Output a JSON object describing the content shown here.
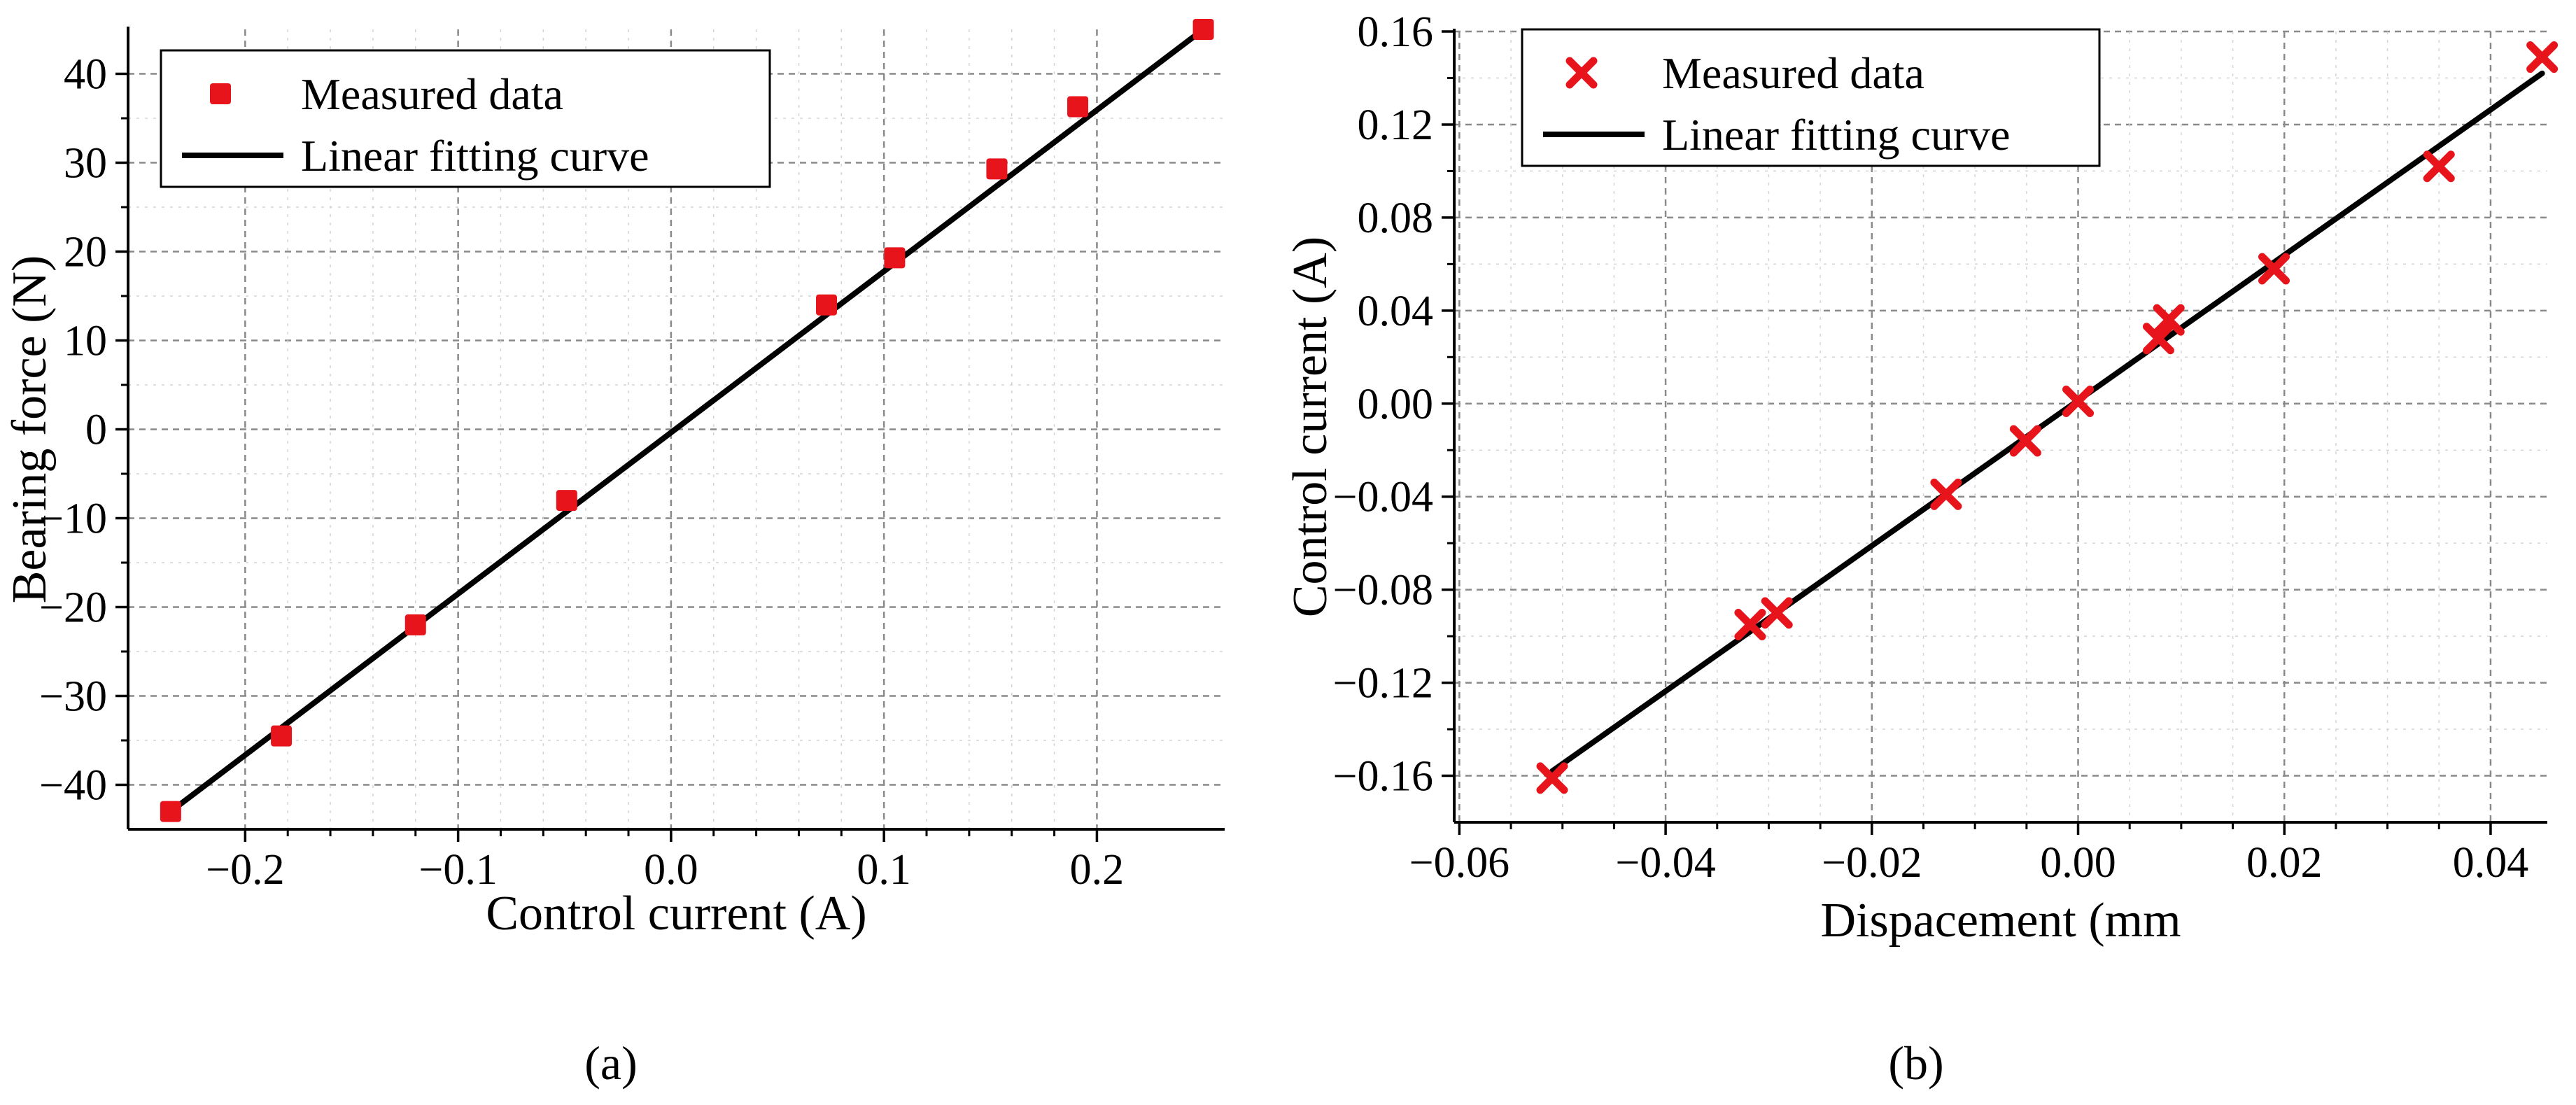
{
  "chart_data": [
    {
      "type": "scatter",
      "panel": "a",
      "xlabel": "Control current (A)",
      "ylabel": "Bearing force (N)",
      "xlim": [
        -0.255,
        0.26
      ],
      "ylim": [
        -45,
        45
      ],
      "xticks": [
        -0.2,
        -0.1,
        0.0,
        0.1,
        0.2
      ],
      "xtick_labels": [
        "−0.2",
        "−0.1",
        "0.0",
        "0.1",
        "0.2"
      ],
      "yticks": [
        -40,
        -30,
        -20,
        -10,
        0,
        10,
        20,
        30,
        40
      ],
      "ytick_labels": [
        "−40",
        "−30",
        "−20",
        "−10",
        "0",
        "10",
        "20",
        "30",
        "40"
      ],
      "grid": true,
      "legend_position": "top-left",
      "series": [
        {
          "name": "Measured data",
          "kind": "marker",
          "marker": "square",
          "color": "#e8141c",
          "x": [
            -0.235,
            -0.183,
            -0.12,
            -0.049,
            0.073,
            0.105,
            0.153,
            0.191,
            0.25
          ],
          "y": [
            -43.0,
            -34.5,
            -22.0,
            -8.0,
            14.0,
            19.3,
            29.3,
            36.3,
            45.0
          ]
        },
        {
          "name": "Linear fitting curve",
          "kind": "line",
          "color": "#000000",
          "x": [
            -0.235,
            0.25
          ],
          "y": [
            -43.0,
            45.0
          ]
        }
      ]
    },
    {
      "type": "scatter",
      "panel": "b",
      "xlabel": "Dispacement (mm",
      "ylabel": "Control current (A)",
      "xlim": [
        -0.0605,
        0.0455
      ],
      "ylim": [
        -0.18,
        0.16
      ],
      "xticks": [
        -0.06,
        -0.04,
        -0.02,
        0.0,
        0.02,
        0.04
      ],
      "xtick_labels": [
        "−0.06",
        "−0.04",
        "−0.02",
        "0.00",
        "0.02",
        "0.04"
      ],
      "yticks": [
        -0.16,
        -0.12,
        -0.08,
        -0.04,
        0.0,
        0.04,
        0.08,
        0.12,
        0.16
      ],
      "ytick_labels": [
        "−0.16",
        "−0.12",
        "−0.08",
        "−0.04",
        "0.00",
        "0.04",
        "0.08",
        "0.12",
        "0.16"
      ],
      "grid": true,
      "legend_position": "top-left",
      "series": [
        {
          "name": "Measured data",
          "kind": "marker",
          "marker": "x",
          "color": "#e8141c",
          "x": [
            -0.051,
            -0.0318,
            -0.0292,
            -0.0128,
            -0.0051,
            0.0,
            0.0078,
            0.0088,
            0.019,
            0.035,
            0.045
          ],
          "y": [
            -0.161,
            -0.095,
            -0.09,
            -0.039,
            -0.016,
            0.001,
            0.028,
            0.036,
            0.058,
            0.102,
            0.149
          ]
        },
        {
          "name": "Linear fitting curve",
          "kind": "line",
          "color": "#000000",
          "x": [
            -0.051,
            0.045
          ],
          "y": [
            -0.158,
            0.142
          ]
        }
      ]
    }
  ],
  "captions": {
    "a": "(a)",
    "b": "(b)"
  }
}
